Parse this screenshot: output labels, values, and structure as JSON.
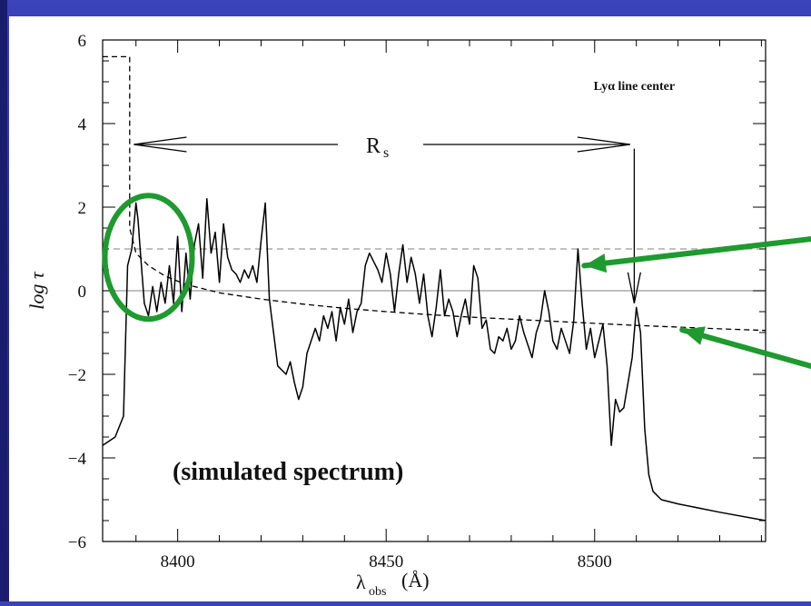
{
  "chart_data": {
    "type": "line",
    "xlabel": "λ_obs (Å)",
    "xlabel_main": "λ",
    "xlabel_sub": "obs",
    "xlabel_unit": "(Å)",
    "ylabel": "log τ",
    "xlim": [
      8382,
      8541
    ],
    "ylim": [
      -6,
      6
    ],
    "xticks": [
      8400,
      8450,
      8500
    ],
    "xtick_labels": [
      "8400",
      "8450",
      "8500"
    ],
    "yticks": [
      -6,
      -4,
      -2,
      0,
      2,
      4,
      6
    ],
    "ytick_labels": [
      "−6",
      "−4",
      "−2",
      "0",
      "2",
      "4",
      "6"
    ],
    "reference_lines": [
      {
        "y": 1,
        "style": "dashed",
        "color": "#9a9a9a"
      },
      {
        "y": 0,
        "style": "solid",
        "color": "#9a9a9a"
      }
    ],
    "series": [
      {
        "style": "solid",
        "color": "#000000",
        "x": [
          8382,
          8385,
          8387,
          8388,
          8389,
          8390,
          8390.5,
          8391,
          8392,
          8393,
          8394,
          8395,
          8396,
          8397,
          8398,
          8399,
          8400,
          8401,
          8402,
          8403,
          8404,
          8405,
          8406,
          8407,
          8408,
          8409,
          8410,
          8411,
          8412,
          8413,
          8414,
          8415,
          8416,
          8417,
          8418,
          8419,
          8420,
          8421,
          8422,
          8423,
          8424,
          8425,
          8426,
          8427,
          8428,
          8429,
          8430,
          8431,
          8432,
          8433,
          8434,
          8435,
          8436,
          8437,
          8438,
          8439,
          8440,
          8441,
          8442,
          8443,
          8444,
          8445,
          8446,
          8447,
          8448,
          8449,
          8450,
          8451,
          8452,
          8453,
          8454,
          8455,
          8456,
          8457,
          8458,
          8459,
          8460,
          8461,
          8462,
          8463,
          8464,
          8465,
          8466,
          8467,
          8468,
          8469,
          8470,
          8471,
          8472,
          8473,
          8474,
          8475,
          8476,
          8477,
          8478,
          8479,
          8480,
          8481,
          8482,
          8483,
          8484,
          8485,
          8486,
          8487,
          8488,
          8489,
          8490,
          8491,
          8492,
          8493,
          8494,
          8495,
          8496,
          8497,
          8498,
          8499,
          8500,
          8501,
          8502,
          8503,
          8504,
          8505,
          8506,
          8507,
          8508,
          8509,
          8510,
          8511,
          8512,
          8513,
          8514,
          8516,
          8520,
          8530,
          8541
        ],
        "y": [
          -3.7,
          -3.5,
          -3.0,
          0.6,
          1.0,
          2.1,
          1.7,
          1.0,
          -0.3,
          -0.6,
          0.1,
          -0.5,
          0.2,
          -0.3,
          0.6,
          -0.3,
          1.3,
          -0.5,
          0.9,
          -0.2,
          1.1,
          1.6,
          0.3,
          2.2,
          0.9,
          1.4,
          0.2,
          1.6,
          0.8,
          0.5,
          0.4,
          0.2,
          0.5,
          0.3,
          0.6,
          0.2,
          1.2,
          2.1,
          -0.2,
          -1.0,
          -1.8,
          -1.9,
          -2.0,
          -1.7,
          -2.2,
          -2.6,
          -2.3,
          -1.5,
          -1.2,
          -0.9,
          -1.2,
          -0.6,
          -0.9,
          -0.5,
          -1.2,
          -0.4,
          -0.8,
          -0.2,
          -1.0,
          -0.5,
          -0.3,
          0.6,
          0.9,
          0.7,
          0.5,
          0.2,
          0.9,
          0.4,
          -0.5,
          0.4,
          1.1,
          0.2,
          0.8,
          0.4,
          -0.3,
          0.4,
          -0.6,
          -1.1,
          -0.4,
          0.5,
          -0.6,
          -0.2,
          -0.5,
          -1.1,
          -0.6,
          -0.2,
          -0.8,
          0.6,
          0.3,
          -0.9,
          -0.7,
          -1.4,
          -1.5,
          -1.1,
          -1.2,
          -0.9,
          -1.4,
          -1.2,
          -0.6,
          -1.0,
          -1.3,
          -1.6,
          -1.0,
          -0.7,
          0.0,
          -0.5,
          -1.2,
          -1.4,
          -0.9,
          -1.2,
          -1.5,
          -0.7,
          1.0,
          -0.3,
          -1.4,
          -0.9,
          -1.6,
          -1.2,
          -0.8,
          -1.8,
          -3.7,
          -2.6,
          -2.9,
          -2.8,
          -2.2,
          -1.6,
          -0.4,
          -1.0,
          -3.3,
          -4.4,
          -4.8,
          -5.0,
          -5.1,
          -5.3,
          -5.5
        ]
      },
      {
        "style": "dashed",
        "color": "#000000",
        "x": [
          8382,
          8388.5,
          8388.5,
          8390,
          8393,
          8397,
          8402,
          8410,
          8420,
          8430,
          8440,
          8450,
          8460,
          8470,
          8480,
          8490,
          8500,
          8510,
          8520,
          8530,
          8541
        ],
        "y": [
          5.6,
          5.6,
          1.5,
          0.9,
          0.6,
          0.35,
          0.15,
          -0.05,
          -0.2,
          -0.32,
          -0.42,
          -0.5,
          -0.57,
          -0.63,
          -0.68,
          -0.73,
          -0.78,
          -0.83,
          -0.87,
          -0.91,
          -0.95
        ]
      }
    ],
    "annotations": {
      "rs_label_main": "R",
      "rs_label_sub": "s",
      "rs_arrow_x": [
        8389.5,
        8508.5
      ],
      "rs_arrow_y": 3.5,
      "lya_label": "Lyα line center",
      "lya_arrow_x": 8509.5,
      "lya_arrow_y_from": 3.4,
      "lya_arrow_y_to": -0.3,
      "simulated_note": "(simulated spectrum)",
      "highlight_circle_center": [
        8393,
        0.8
      ],
      "highlight_color": "#1e9a2e",
      "arrow_color": "#1e9a2e"
    }
  }
}
